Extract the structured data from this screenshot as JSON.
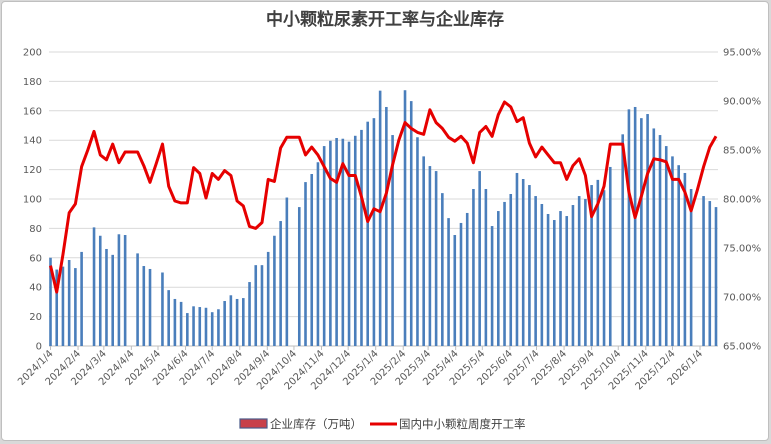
{
  "chart_data": {
    "type": "bar+line",
    "title": "中小颗粒尿素开工率与企业库存",
    "x_tick_labels": [
      "2024/1/4",
      "2024/2/4",
      "2024/3/4",
      "2024/4/4",
      "2024/5/4",
      "2024/6/4",
      "2024/7/4",
      "2024/8/4",
      "2024/9/4",
      "2024/10/4",
      "2024/11/4",
      "2024/12/4",
      "2025/1/4",
      "2025/2/4",
      "2025/3/4",
      "2025/4/4",
      "2025/5/4",
      "2025/6/4",
      "2025/7/4",
      "2025/8/4",
      "2025/9/4",
      "2025/10/4",
      "2025/11/4",
      "2025/12/4",
      "2026/1/4"
    ],
    "x_start": "2024/1/4",
    "x_interval": "weekly",
    "left_axis": {
      "range": [
        0,
        200
      ],
      "ticks": [
        "0",
        "20",
        "40",
        "60",
        "80",
        "100",
        "120",
        "140",
        "160",
        "180",
        "200"
      ]
    },
    "right_axis": {
      "range": [
        65,
        95
      ],
      "ticks": [
        "65.00%",
        "70.00%",
        "75.00%",
        "80.00%",
        "85.00%",
        "90.00%",
        "95.00%"
      ]
    },
    "grid": true,
    "legend_position": "bottom",
    "series": [
      {
        "name": "企业库存（万吨）",
        "type": "bar",
        "axis": "left",
        "color": "#4a7ebb",
        "values": [
          60,
          52,
          54,
          58.5,
          53,
          64,
          null,
          80.7,
          75,
          66,
          62,
          76,
          75.5,
          null,
          63,
          54.4,
          52.4,
          null,
          50,
          38,
          32,
          30,
          22.4,
          27,
          26.5,
          26,
          23,
          25,
          30.6,
          34.5,
          32,
          32.6,
          43.5,
          55,
          55,
          64,
          75,
          85,
          101,
          null,
          94.5,
          111.5,
          117,
          125,
          136,
          139.6,
          141.5,
          141,
          139,
          143,
          147,
          152.6,
          155,
          173.7,
          162.6,
          143.5,
          null,
          174,
          166.6,
          142,
          129,
          122.4,
          119,
          104,
          87,
          75.5,
          83.7,
          90.5,
          106.8,
          119,
          106.8,
          81.6,
          91.8,
          98,
          103.4,
          117.7,
          113.6,
          109.5,
          102,
          96.6,
          89.8,
          85.7,
          91.8,
          88.4,
          95.9,
          102,
          100,
          109.5,
          113,
          106,
          121.8,
          null,
          144,
          161,
          162.6,
          155,
          157.8,
          148,
          143.5,
          136,
          129,
          123,
          117.7,
          106.8,
          null,
          102,
          98.6,
          94.5
        ]
      },
      {
        "name": "国内中小颗粒周度开工率",
        "type": "line",
        "axis": "right",
        "color": "#e60000",
        "values": [
          73.2,
          70.5,
          74.3,
          78.6,
          79.5,
          83.3,
          85,
          86.9,
          84.5,
          84,
          85.6,
          83.7,
          84.8,
          84.8,
          84.8,
          83.4,
          81.7,
          83.6,
          85.6,
          81.3,
          79.8,
          79.6,
          79.6,
          83.2,
          82.6,
          80.1,
          82.6,
          82,
          82.9,
          82.4,
          79.8,
          79.3,
          77.2,
          77,
          77.6,
          82,
          81.8,
          85.2,
          86.3,
          86.3,
          86.3,
          84.5,
          85.3,
          84.5,
          83.3,
          82.1,
          81.7,
          83.6,
          82.4,
          82.4,
          80.2,
          77.7,
          79,
          78.7,
          80.6,
          83.5,
          86,
          87.8,
          87.2,
          86.8,
          86.6,
          89.1,
          87.8,
          87.2,
          86.3,
          85.9,
          86.4,
          85.7,
          83.7,
          86.8,
          87.4,
          86.4,
          88.6,
          89.9,
          89.4,
          87.9,
          88.3,
          85.7,
          84.3,
          85.3,
          84.5,
          83.7,
          83.7,
          82,
          83.4,
          84.1,
          82.4,
          78.2,
          79.5,
          81.3,
          85.6,
          85.6,
          85.6,
          80.7,
          78.1,
          80.3,
          82.6,
          84.1,
          84,
          83.8,
          82,
          82,
          80.7,
          78.8,
          80.9,
          83.3,
          85.3,
          86.4
        ]
      }
    ]
  }
}
